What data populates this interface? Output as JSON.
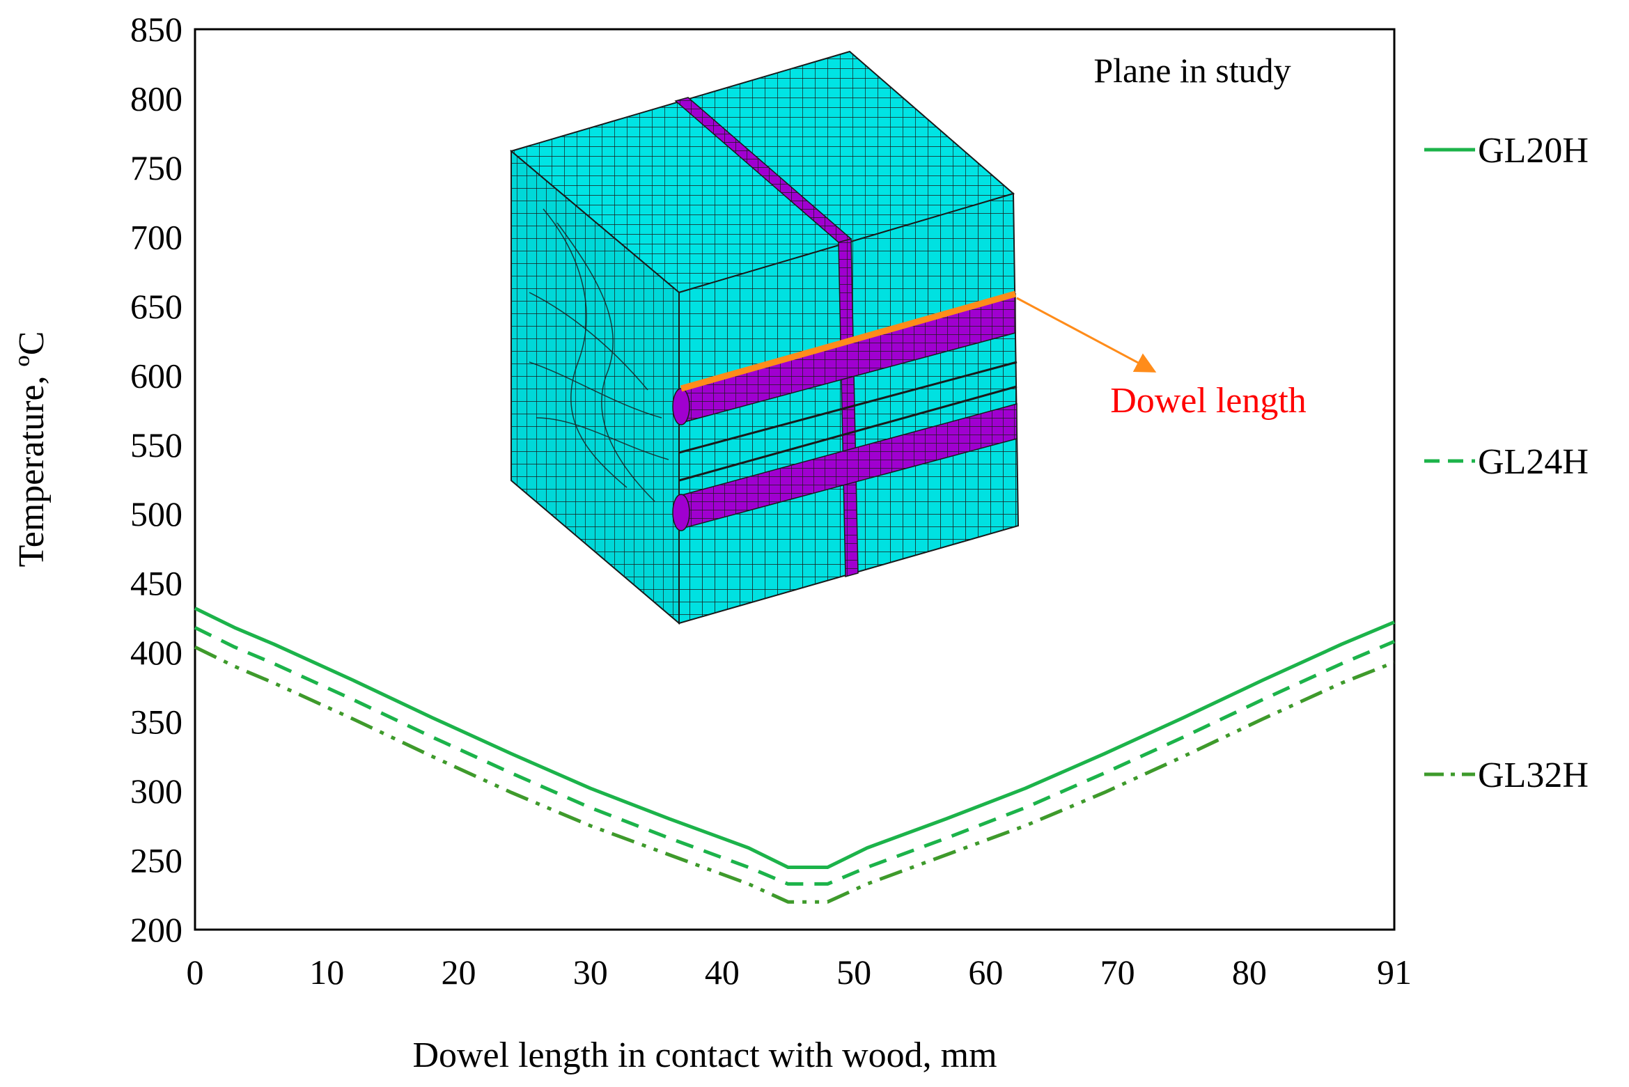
{
  "chart_data": {
    "type": "line",
    "xlabel": "Dowel length in contact with wood, mm",
    "ylabel": "Temperature, ºC",
    "xlim": [
      0,
      91
    ],
    "ylim": [
      200,
      850
    ],
    "xticks": [
      0,
      10,
      20,
      30,
      40,
      50,
      60,
      70,
      80,
      91
    ],
    "yticks": [
      200,
      250,
      300,
      350,
      400,
      450,
      500,
      550,
      600,
      650,
      700,
      750,
      800,
      850
    ],
    "grid": false,
    "legend_position": "right",
    "series": [
      {
        "name": "GL20H",
        "style": "solid",
        "color": "#1cb34a",
        "x": [
          0,
          3,
          6,
          12,
          18,
          24,
          30,
          36,
          42,
          45,
          48,
          51,
          57,
          63,
          69,
          75,
          81,
          87,
          91
        ],
        "y": [
          432,
          418,
          406,
          380,
          353,
          327,
          302,
          280,
          259,
          245,
          245,
          259,
          280,
          302,
          327,
          353,
          380,
          406,
          422
        ]
      },
      {
        "name": "GL24H",
        "style": "dashed",
        "color": "#1cb34a",
        "x": [
          0,
          3,
          6,
          12,
          18,
          24,
          30,
          36,
          42,
          45,
          48,
          51,
          57,
          63,
          69,
          75,
          81,
          87,
          91
        ],
        "y": [
          418,
          404,
          392,
          366,
          339,
          313,
          288,
          266,
          245,
          233,
          233,
          245,
          266,
          288,
          313,
          339,
          366,
          392,
          408
        ]
      },
      {
        "name": "GL32H",
        "style": "dash-dot-dot",
        "color": "#3e9a2b",
        "x": [
          0,
          3,
          6,
          12,
          18,
          24,
          30,
          36,
          42,
          45,
          48,
          51,
          57,
          63,
          69,
          75,
          81,
          87,
          91
        ],
        "y": [
          404,
          390,
          378,
          352,
          325,
          299,
          275,
          254,
          233,
          220,
          220,
          233,
          254,
          275,
          299,
          325,
          352,
          378,
          393
        ]
      }
    ],
    "annotations": [
      {
        "text": "Plane in study"
      },
      {
        "text": "Dowel length",
        "color": "#ff0000"
      }
    ]
  },
  "colors": {
    "mesh_face": "#00e1e1",
    "mesh_line": "#1a1a1a",
    "dowel_band": "#a000d0",
    "dowel_line": "#ff8c1a"
  }
}
